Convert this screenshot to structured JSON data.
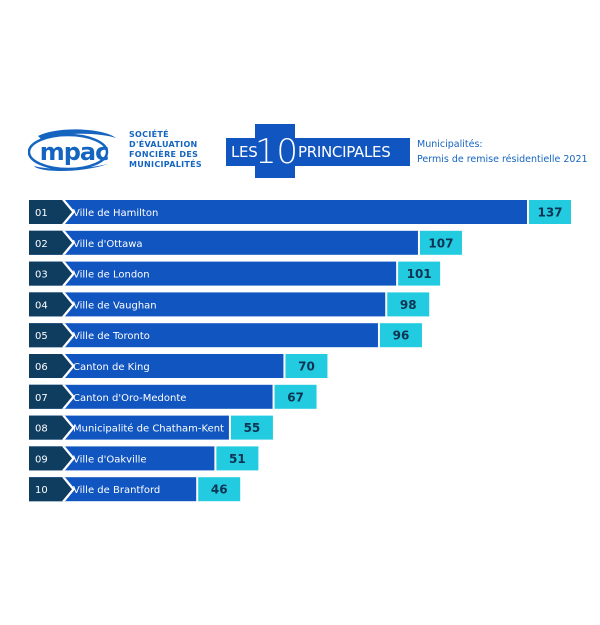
{
  "header": {
    "logo_text": "mpac",
    "org_lines": [
      "SOCIÉTÉ",
      "D'ÉVALUATION",
      "FONCIÈRE DES",
      "MUNICIPALITÉS"
    ],
    "title_prefix": "LES",
    "title_number": "10",
    "title_suffix": "PRINCIPALES",
    "subtitle_lines": [
      "Municipalités:",
      "Permis de remise résidentielle 2021"
    ]
  },
  "colors": {
    "bar": "#1155c0",
    "rank_box": "#0f3d5f",
    "value_box": "#22cbe0",
    "value_text": "#0f3352",
    "brand": "#1565c0"
  },
  "chart_data": {
    "type": "bar",
    "orientation": "horizontal",
    "title": "LES 10 PRINCIPALES",
    "subtitle": "Municipalités: Permis de remise résidentielle 2021",
    "xlabel": "",
    "ylabel": "",
    "grid": false,
    "legend": "none",
    "xlim": [
      0,
      137
    ],
    "ranks": [
      "01",
      "02",
      "03",
      "04",
      "05",
      "06",
      "07",
      "08",
      "09",
      "10"
    ],
    "categories": [
      "Ville de Hamilton",
      "Ville d'Ottawa",
      "Ville de London",
      "Ville de Vaughan",
      "Ville de Toronto",
      "Canton de King",
      "Canton d'Oro-Medonte",
      "Municipalité de Chatham-Kent",
      "Ville d'Oakville",
      "Ville de Brantford"
    ],
    "values": [
      137,
      107,
      101,
      98,
      96,
      70,
      67,
      55,
      51,
      46
    ]
  }
}
